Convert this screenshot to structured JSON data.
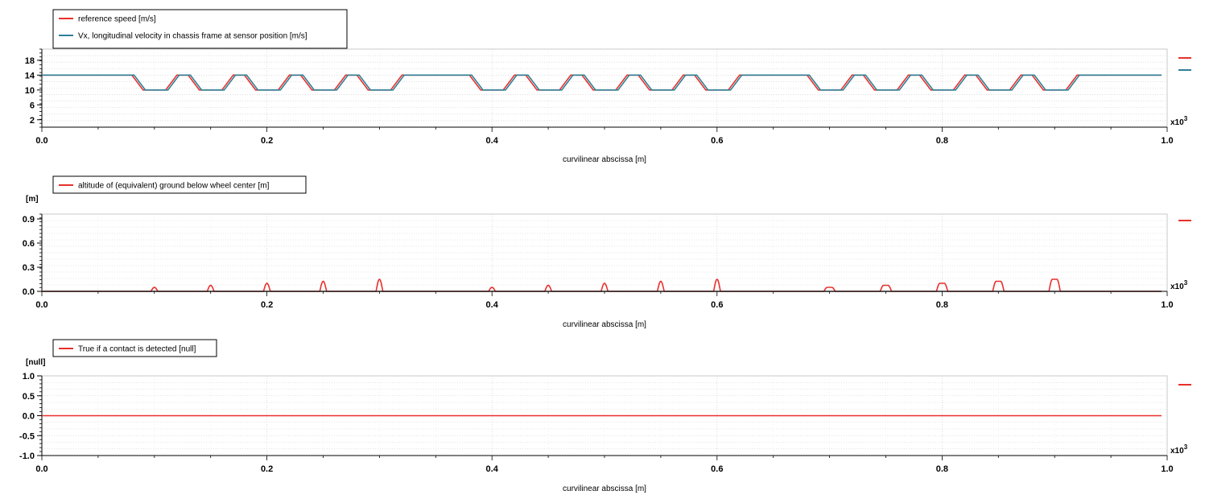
{
  "colors": {
    "red": "#e8302c",
    "blue": "#2f7f96",
    "dark": "#1a1a1a",
    "grid": "#c9c9c9"
  },
  "scale_label": "x10",
  "scale_exp": "3",
  "chart_data": [
    {
      "type": "line",
      "xlabel": "curvilinear abscissa [m]",
      "unit": "",
      "xlim": [
        0,
        1.0
      ],
      "xticks": [
        "0.0",
        "0.2",
        "0.4",
        "0.6",
        "0.8",
        "1.0"
      ],
      "ylim": [
        0,
        21
      ],
      "yticks": [
        2,
        6,
        10,
        14,
        18
      ],
      "ytick_labels": [
        "2",
        "6",
        "10",
        "14",
        "18"
      ],
      "grid": true,
      "legend": [
        "reference speed [m/s]",
        "Vx, longitudinal velocity in chassis frame at sensor position [m/s]"
      ],
      "series": [
        {
          "name": "reference speed [m/s]",
          "color": "red",
          "x": [
            0.0,
            0.08,
            0.09,
            0.11,
            0.12,
            0.13,
            0.14,
            0.16,
            0.17,
            0.18,
            0.19,
            0.21,
            0.22,
            0.23,
            0.24,
            0.26,
            0.27,
            0.28,
            0.29,
            0.31,
            0.32,
            0.38,
            0.39,
            0.41,
            0.42,
            0.43,
            0.44,
            0.46,
            0.47,
            0.48,
            0.49,
            0.51,
            0.52,
            0.53,
            0.54,
            0.56,
            0.57,
            0.58,
            0.59,
            0.61,
            0.62,
            0.68,
            0.69,
            0.71,
            0.72,
            0.73,
            0.74,
            0.76,
            0.77,
            0.78,
            0.79,
            0.81,
            0.82,
            0.83,
            0.84,
            0.86,
            0.87,
            0.88,
            0.89,
            0.91,
            0.92,
            0.995
          ],
          "y": [
            14,
            14,
            10,
            10,
            14,
            14,
            10,
            10,
            14,
            14,
            10,
            10,
            14,
            14,
            10,
            10,
            14,
            14,
            10,
            10,
            14,
            14,
            10,
            10,
            14,
            14,
            10,
            10,
            14,
            14,
            10,
            10,
            14,
            14,
            10,
            10,
            14,
            14,
            10,
            10,
            14,
            14,
            10,
            10,
            14,
            14,
            10,
            10,
            14,
            14,
            10,
            10,
            14,
            14,
            10,
            10,
            14,
            14,
            10,
            10,
            14,
            14
          ]
        },
        {
          "name": "Vx, longitudinal velocity in chassis frame at sensor position [m/s]",
          "color": "blue",
          "x": [
            0.0,
            0.082,
            0.092,
            0.112,
            0.122,
            0.132,
            0.142,
            0.162,
            0.172,
            0.182,
            0.192,
            0.212,
            0.222,
            0.232,
            0.242,
            0.262,
            0.272,
            0.282,
            0.292,
            0.312,
            0.322,
            0.382,
            0.392,
            0.412,
            0.422,
            0.432,
            0.442,
            0.462,
            0.472,
            0.482,
            0.492,
            0.512,
            0.522,
            0.532,
            0.542,
            0.562,
            0.572,
            0.582,
            0.592,
            0.612,
            0.622,
            0.682,
            0.692,
            0.712,
            0.722,
            0.732,
            0.742,
            0.762,
            0.772,
            0.782,
            0.792,
            0.812,
            0.822,
            0.832,
            0.842,
            0.862,
            0.872,
            0.882,
            0.892,
            0.912,
            0.922,
            0.995
          ],
          "y": [
            14,
            14,
            10,
            10,
            14,
            14,
            10,
            10,
            14,
            14,
            10,
            10,
            14,
            14,
            10,
            10,
            14,
            14,
            10,
            10,
            14,
            14,
            10,
            10,
            14,
            14,
            10,
            10,
            14,
            14,
            10,
            10,
            14,
            14,
            10,
            10,
            14,
            14,
            10,
            10,
            14,
            14,
            10,
            10,
            14,
            14,
            10,
            10,
            14,
            14,
            10,
            10,
            14,
            14,
            10,
            10,
            14,
            14,
            10,
            10,
            14,
            14
          ]
        }
      ]
    },
    {
      "type": "line",
      "xlabel": "curvilinear abscissa [m]",
      "unit": "[m]",
      "xlim": [
        0,
        1.0
      ],
      "xticks": [
        "0.0",
        "0.2",
        "0.4",
        "0.6",
        "0.8",
        "1.0"
      ],
      "ylim": [
        0,
        0.96
      ],
      "yticks": [
        0.0,
        0.3,
        0.6,
        0.9
      ],
      "ytick_labels": [
        "0.0",
        "0.3",
        "0.6",
        "0.9"
      ],
      "grid": true,
      "legend": [
        "altitude of (equivalent) ground below wheel center [m]"
      ],
      "series": [
        {
          "name": "altitude of (equivalent) ground below wheel center [m]",
          "color": "red",
          "bumps": [
            {
              "x": 0.1,
              "w": 0.003,
              "flat": 0.0,
              "h": 0.05
            },
            {
              "x": 0.15,
              "w": 0.003,
              "flat": 0.0,
              "h": 0.075
            },
            {
              "x": 0.2,
              "w": 0.003,
              "flat": 0.0,
              "h": 0.1
            },
            {
              "x": 0.25,
              "w": 0.003,
              "flat": 0.0,
              "h": 0.125
            },
            {
              "x": 0.3,
              "w": 0.003,
              "flat": 0.0,
              "h": 0.15
            },
            {
              "x": 0.4,
              "w": 0.003,
              "flat": 0.0,
              "h": 0.05
            },
            {
              "x": 0.45,
              "w": 0.003,
              "flat": 0.0,
              "h": 0.075
            },
            {
              "x": 0.5,
              "w": 0.003,
              "flat": 0.0,
              "h": 0.1
            },
            {
              "x": 0.55,
              "w": 0.003,
              "flat": 0.0,
              "h": 0.125
            },
            {
              "x": 0.6,
              "w": 0.003,
              "flat": 0.0,
              "h": 0.15
            },
            {
              "x": 0.7,
              "w": 0.003,
              "flat": 0.004,
              "h": 0.05
            },
            {
              "x": 0.75,
              "w": 0.003,
              "flat": 0.004,
              "h": 0.075
            },
            {
              "x": 0.8,
              "w": 0.003,
              "flat": 0.004,
              "h": 0.1
            },
            {
              "x": 0.85,
              "w": 0.003,
              "flat": 0.004,
              "h": 0.125
            },
            {
              "x": 0.9,
              "w": 0.003,
              "flat": 0.004,
              "h": 0.15
            }
          ]
        }
      ]
    },
    {
      "type": "line",
      "xlabel": "curvilinear abscissa [m]",
      "unit": "[null]",
      "xlim": [
        0,
        1.0
      ],
      "xticks": [
        "0.0",
        "0.2",
        "0.4",
        "0.6",
        "0.8",
        "1.0"
      ],
      "ylim": [
        -1.0,
        1.0
      ],
      "yticks": [
        -1.0,
        -0.5,
        0.0,
        0.5,
        1.0
      ],
      "ytick_labels": [
        "-1.0",
        "-0.5",
        "0.0",
        "0.5",
        "1.0"
      ],
      "grid": true,
      "legend": [
        "True if a contact is detected [null]"
      ],
      "series": [
        {
          "name": "True if a contact is detected [null]",
          "color": "red",
          "x": [
            0.0,
            0.995
          ],
          "y": [
            0,
            0
          ]
        }
      ]
    }
  ]
}
